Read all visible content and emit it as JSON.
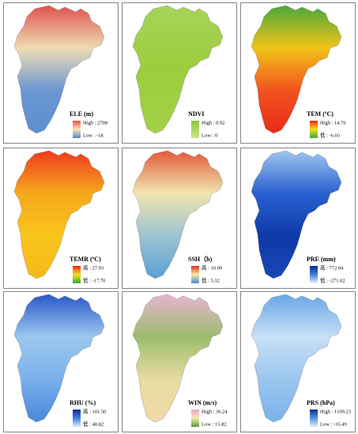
{
  "panels": [
    {
      "title": "ELE (m)",
      "high": "High : 2708",
      "low": "Low : -18",
      "colors": [
        "#e8504c",
        "#f3e7b8",
        "#4f86cf"
      ],
      "map_colors": [
        "#e0524f",
        "#eedcb5",
        "#6b97d2",
        "#5b8fd0"
      ]
    },
    {
      "title": "NDVI",
      "high": "High : 0.92",
      "low": "Low : 0",
      "colors": [
        "#8cc63f",
        "#c8e588"
      ],
      "map_colors": [
        "#a6d35a",
        "#9ccd3c",
        "#a4d14a"
      ]
    },
    {
      "title": "TEM (ºC)",
      "high": "High : 14.76",
      "low": "低 : -6.03",
      "colors": [
        "#e8231e",
        "#f7e21a",
        "#3aa83a"
      ],
      "map_colors": [
        "#4aa83c",
        "#f2c418",
        "#f1521e",
        "#ea2a1c"
      ]
    },
    {
      "title": "TEMR (ºC)",
      "high": "高 : 27.93",
      "low": "低 : -17.70",
      "colors": [
        "#e8231e",
        "#f7e21a",
        "#3aa83a"
      ],
      "map_colors": [
        "#ee3a1e",
        "#f6a81c",
        "#f8c51a",
        "#f6b81a"
      ]
    },
    {
      "title": "SSH（h)",
      "high": "高 : 10.09",
      "low": "低 : 5.32",
      "colors": [
        "#d7301f",
        "#f5e9a8",
        "#4a8ed0"
      ],
      "map_colors": [
        "#e25a3a",
        "#f0e6b0",
        "#9cc4cf",
        "#5a9fd6"
      ]
    },
    {
      "title": "PRE (mm)",
      "high": "高 : 772.04",
      "low": "低 : -271.02",
      "colors": [
        "#0b2a8c",
        "#3f7fe0",
        "#e6f0fb"
      ],
      "map_colors": [
        "#9fc6ef",
        "#2a60d0",
        "#0e3aa8",
        "#1a46b8"
      ]
    },
    {
      "title": "RHU (%)",
      "high": "高 : 101.50",
      "low": "低 : 48.82",
      "colors": [
        "#0b2a8c",
        "#3f7fe0",
        "#e6f0fb"
      ],
      "map_colors": [
        "#2a58c8",
        "#9cc8ef",
        "#7ab0ea",
        "#4a86dc"
      ]
    },
    {
      "title": "WIN (m/s)",
      "high": "High : 36.24",
      "low": "Low : 15.82",
      "colors": [
        "#e8a7c8",
        "#f3e7b2",
        "#5a9a3a"
      ],
      "map_colors": [
        "#e6b4d0",
        "#9cbd6e",
        "#e8dca0",
        "#f0d9a8"
      ]
    },
    {
      "title": "PRS (hPa)",
      "high": "High : 1109.23",
      "low": "Low : -35.49",
      "colors": [
        "#0b2a8c",
        "#5a95e2",
        "#e6f0fb"
      ],
      "map_colors": [
        "#6aa6e6",
        "#c8e0f6",
        "#9ac6ee",
        "#7ab2ea"
      ]
    }
  ]
}
